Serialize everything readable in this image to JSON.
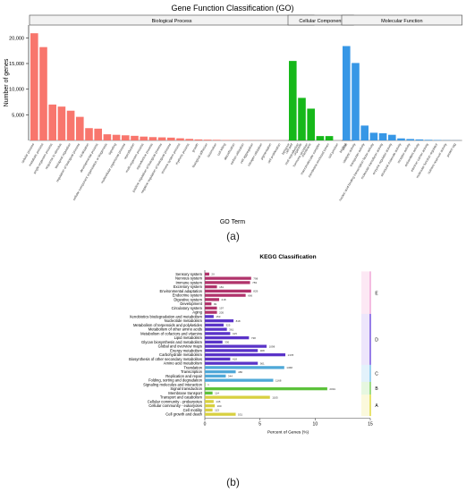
{
  "figure": {
    "panel_a_label": "(a)",
    "panel_b_label": "(b)"
  },
  "chart_data": [
    {
      "type": "bar",
      "title": "Gene Function Classification (GO)",
      "xlabel": "GO Term",
      "ylabel": "Number of genes",
      "ylim": [
        0,
        22500
      ],
      "yticks": [
        5000,
        10000,
        15000,
        20000
      ],
      "ytick_labels": [
        "5,000",
        "10,000",
        "15,000",
        "20,000"
      ],
      "grid": false,
      "groups": [
        {
          "name": "Biological Process",
          "color": "#f8766d",
          "categories": [
            "cellular process",
            "metabolic process",
            "single-organism process",
            "response to stimulus",
            "biological regulation",
            "regulation of biological process",
            "localization",
            "developmental process",
            "cellular component organization or biogenesis",
            "signaling",
            "multicellular organismal process",
            "reproduction",
            "multi-organism process",
            "reproductive process",
            "positive regulation of biological process",
            "negative regulation of biological process",
            "immune system process",
            "rhythmic process",
            "growth",
            "biological adhesion",
            "locomotion",
            "cell killing",
            "detoxification",
            "carbon utilization",
            "cell aggregation",
            "nitrogen utilization",
            "pigmentation",
            "cell proliferation",
            "behavior",
            "viral reproduction",
            "hormone secretion"
          ],
          "values": [
            20900,
            18200,
            7000,
            6600,
            5800,
            4600,
            2400,
            2300,
            1200,
            1100,
            1000,
            900,
            750,
            650,
            600,
            550,
            420,
            300,
            200,
            150,
            120,
            80,
            60,
            50,
            40,
            30,
            25,
            20,
            15,
            10,
            5
          ]
        },
        {
          "name": "Cellular Component",
          "color": "#16b81a",
          "categories": [
            "cell part",
            "organelle",
            "membrane",
            "macromolecular complex",
            "membrane-enclosed lumen",
            "cell junction",
            "virion"
          ],
          "values": [
            15500,
            8300,
            6200,
            850,
            850,
            0,
            0
          ]
        },
        {
          "name": "Molecular Function",
          "color": "#3797e6",
          "categories": [
            "binding",
            "catalytic activity",
            "transporter activity",
            "nucleic acid binding transcription factor activity",
            "molecular transducer activity",
            "enzyme regulator activity",
            "structural molecule activity",
            "receptor activity",
            "antioxidant activity",
            "electron carrier activity",
            "molecular function regulator",
            "nutrient reservoir activity",
            "protein tag"
          ],
          "values": [
            18400,
            15100,
            2900,
            1500,
            1400,
            1100,
            400,
            280,
            200,
            120,
            80,
            40,
            20
          ]
        }
      ]
    },
    {
      "type": "bar",
      "orientation": "horizontal",
      "title": "KEGG Classification",
      "xlabel": "Percent of Genes (%)",
      "xlim": [
        0,
        15
      ],
      "xticks": [
        0,
        5,
        10,
        15
      ],
      "grid": false,
      "groups": [
        {
          "name": "E",
          "bar_color": "#b0336b",
          "band_color": "#fce8f4",
          "edge_color": "#f0a8d8"
        },
        {
          "name": "D",
          "bar_color": "#5a33c8",
          "band_color": "#ede6fb",
          "edge_color": "#7050e0"
        },
        {
          "name": "C",
          "bar_color": "#4fa8d8",
          "band_color": "#e3f2fb",
          "edge_color": "#7cc4ea"
        },
        {
          "name": "B",
          "bar_color": "#5cc23b",
          "band_color": "#e6f7e0",
          "edge_color": "#7ed05c"
        },
        {
          "name": "A",
          "bar_color": "#d8d040",
          "band_color": "#fbf9dc",
          "edge_color": "#e0d83c"
        }
      ],
      "categories": [
        "Sensory system",
        "Nervous system",
        "Immune system",
        "Excretory system",
        "Environmental adaptation",
        "Endocrine system",
        "Digestive system",
        "Development",
        "Circulatory system",
        "Aging",
        "Xenobiotics biodegradation and metabolism",
        "Nucleotide metabolism",
        "Metabolism of terpenoids and polyketides",
        "Metabolism of other amino acids",
        "Metabolism of cofactors and vitamins",
        "Lipid metabolism",
        "Glycan biosynthesis and metabolism",
        "Global and overview maps",
        "Energy metabolism",
        "Carbohydrate metabolism",
        "Biosynthesis of other secondary metabolites",
        "Amino acid metabolism",
        "Translation",
        "Transcription",
        "Replication and repair",
        "Folding, sorting and degradation",
        "Signaling molecules and interaction",
        "Signal transduction",
        "Membrane transport",
        "Transport and catabolism",
        "Cellular community - prokaryotes",
        "Cellular community - eukaryotes",
        "Cell motility",
        "Cell growth and death"
      ],
      "group_index": [
        0,
        0,
        0,
        0,
        0,
        0,
        0,
        0,
        0,
        0,
        1,
        1,
        1,
        1,
        1,
        1,
        1,
        1,
        1,
        1,
        1,
        1,
        2,
        2,
        2,
        2,
        3,
        3,
        3,
        4,
        4,
        4,
        4,
        4
      ],
      "values": [
        0.4,
        4.2,
        4.1,
        1.1,
        4.2,
        3.7,
        1.3,
        0.6,
        1.1,
        1.1,
        0.8,
        2.6,
        1.7,
        2.0,
        2.3,
        4.0,
        1.6,
        5.6,
        4.8,
        7.3,
        2.3,
        4.8,
        7.2,
        2.8,
        1.9,
        6.2,
        0.05,
        11.1,
        0.7,
        5.9,
        0.8,
        0.9,
        0.7,
        2.8
      ],
      "value_labels": [
        "20",
        "798",
        "783",
        "181",
        "829",
        "666",
        "218",
        "99",
        "197",
        "205",
        "153",
        "818",
        "325",
        "361",
        "415",
        "738",
        "330",
        "1098",
        "908",
        "1378",
        "418",
        "901",
        "1368",
        "486",
        "344",
        "1168",
        "1",
        "2091",
        "114",
        "1105",
        "145",
        "160",
        "113",
        "531"
      ]
    }
  ]
}
